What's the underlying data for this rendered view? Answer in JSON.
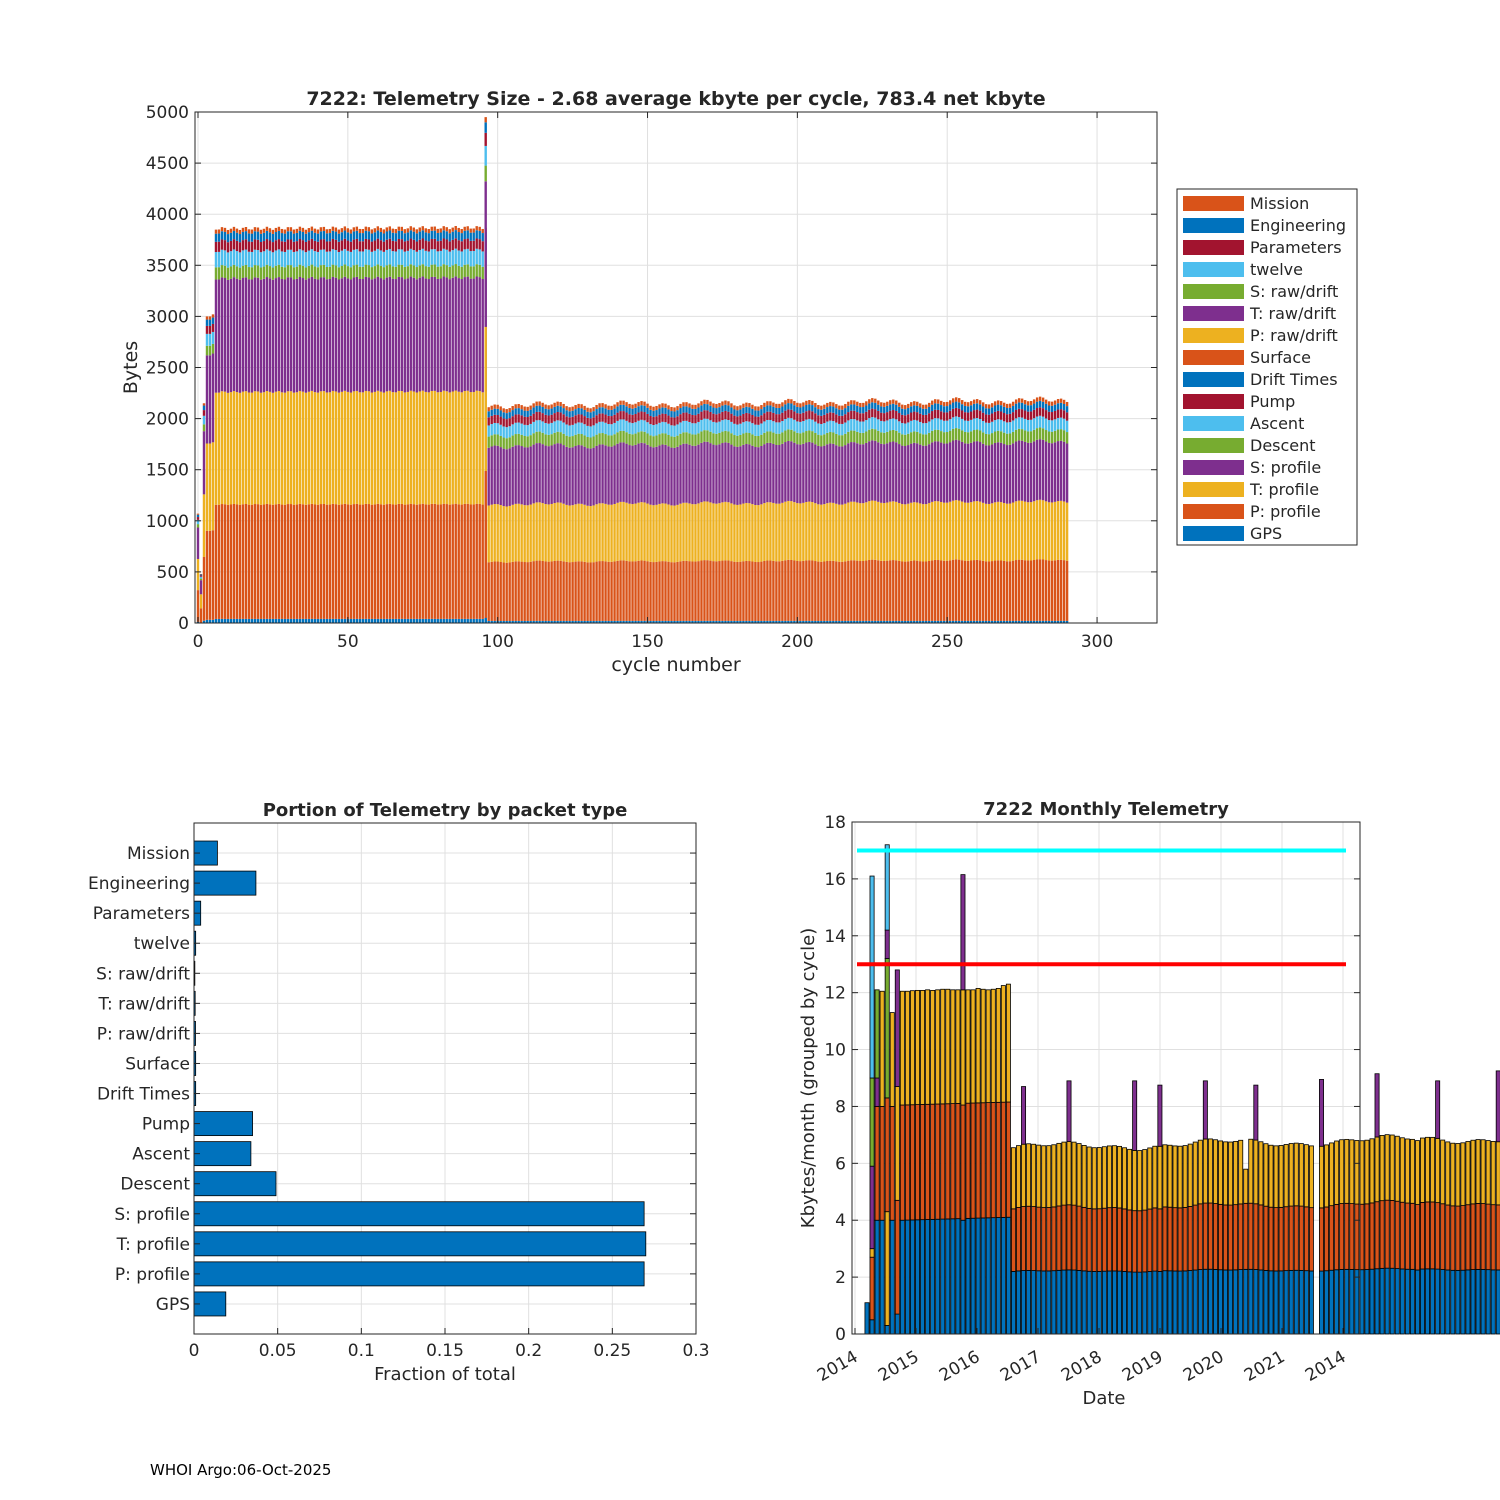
{
  "footer": "WHOI Argo:06-Oct-2025",
  "chart_data": [
    {
      "id": "telemetry-size",
      "type": "bar",
      "stacked": true,
      "title": "7222: Telemetry Size - 2.68 average kbyte per cycle,  783.4 net kbyte",
      "xlabel": "cycle number",
      "ylabel": "Bytes",
      "xlim": [
        -1,
        320
      ],
      "ylim": [
        0,
        5000
      ],
      "xticks": [
        0,
        50,
        100,
        150,
        200,
        250,
        300
      ],
      "yticks": [
        0,
        500,
        1000,
        1500,
        2000,
        2500,
        3000,
        3500,
        4000,
        4500,
        5000
      ],
      "grid": true,
      "legend_location": "outside-right",
      "legend": [
        {
          "name": "Mission",
          "color": "#D95319"
        },
        {
          "name": "Engineering",
          "color": "#0072BD"
        },
        {
          "name": "Parameters",
          "color": "#A2142F"
        },
        {
          "name": "twelve",
          "color": "#4DBEEE"
        },
        {
          "name": "S: raw/drift",
          "color": "#77AC30"
        },
        {
          "name": "T: raw/drift",
          "color": "#7E2F8E"
        },
        {
          "name": "P: raw/drift",
          "color": "#EDB120"
        },
        {
          "name": "Surface",
          "color": "#D95319"
        },
        {
          "name": "Drift Times",
          "color": "#0072BD"
        },
        {
          "name": "Pump",
          "color": "#A2142F"
        },
        {
          "name": "Ascent",
          "color": "#4DBEEE"
        },
        {
          "name": "Descent",
          "color": "#77AC30"
        },
        {
          "name": "S: profile",
          "color": "#7E2F8E"
        },
        {
          "name": "T: profile",
          "color": "#EDB120"
        },
        {
          "name": "P: profile",
          "color": "#D95319"
        },
        {
          "name": "GPS",
          "color": "#0072BD"
        }
      ],
      "stack_order_bottom_to_top": [
        "GPS",
        "P: profile",
        "T: profile",
        "S: profile",
        "Descent",
        "Ascent",
        "Pump",
        "Drift Times",
        "Surface",
        "P: raw/drift",
        "T: raw/drift",
        "S: raw/drift",
        "twelve",
        "Parameters",
        "Engineering",
        "Mission"
      ],
      "segments": [
        {
          "cycles": [
            6,
            96
          ],
          "values": {
            "GPS": 40,
            "P: profile": 1120,
            "T: profile": 1100,
            "S: profile": 1110,
            "Descent": 120,
            "Ascent": 150,
            "Pump": 100,
            "Engineering": 80,
            "Mission": 40
          },
          "total": 3860
        },
        {
          "cycles": [
            97,
            290
          ],
          "values": {
            "GPS": 20,
            "P: profile": 580,
            "T: profile": 560,
            "S: profile": 570,
            "Descent": 110,
            "Ascent": 110,
            "Pump": 80,
            "Engineering": 60,
            "Mission": 40
          },
          "total": 2130
        }
      ],
      "special_cycles": [
        {
          "cycle": 0,
          "total": 1070
        },
        {
          "cycle": 1,
          "total": 480
        },
        {
          "cycle": 2,
          "total": 2150
        },
        {
          "cycle": 3,
          "total": 3000
        },
        {
          "cycle": 4,
          "total": 3000
        },
        {
          "cycle": 5,
          "total": 3020
        },
        {
          "cycle": 96,
          "total": 4950
        }
      ]
    },
    {
      "id": "portion-by-packet",
      "type": "bar",
      "orientation": "horizontal",
      "title": "Portion of Telemetry by packet type",
      "xlabel": "Fraction of total",
      "ylabel": "",
      "xlim": [
        0,
        0.3
      ],
      "xticks": [
        0,
        0.05,
        0.1,
        0.15,
        0.2,
        0.25,
        0.3
      ],
      "xtick_labels": [
        "0",
        "0.05",
        "0.1",
        "0.15",
        "0.2",
        "0.25",
        "0.3"
      ],
      "grid": true,
      "bar_color": "#0072BD",
      "categories": [
        "Mission",
        "Engineering",
        "Parameters",
        "twelve",
        "S: raw/drift",
        "T: raw/drift",
        "P: raw/drift",
        "Surface",
        "Drift Times",
        "Pump",
        "Ascent",
        "Descent",
        "S: profile",
        "T: profile",
        "P: profile",
        "GPS"
      ],
      "values": [
        0.014,
        0.037,
        0.004,
        0.001,
        0.0005,
        0.0007,
        0.0009,
        0.001,
        0.001,
        0.035,
        0.034,
        0.049,
        0.269,
        0.27,
        0.269,
        0.019
      ]
    },
    {
      "id": "monthly-telemetry",
      "type": "bar",
      "stacked": true,
      "title": "7222 Monthly Telemetry",
      "xlabel": "Date",
      "ylabel": "Kbytes/month (grouped by cycle)",
      "ylim": [
        0,
        18
      ],
      "yticks": [
        0,
        2,
        4,
        6,
        8,
        10,
        12,
        14,
        16,
        18
      ],
      "xtick_labels": [
        "2014",
        "2015",
        "2016",
        "2017",
        "2018",
        "2019",
        "2020",
        "2021",
        "2014"
      ],
      "grid": true,
      "reference_lines": [
        {
          "y": 17,
          "color": "#00FFFF"
        },
        {
          "y": 13,
          "color": "#FF0000"
        }
      ],
      "layer_colors": [
        "#0072BD",
        "#D95319",
        "#EDB120",
        "#7E2F8E",
        "#77AC30",
        "#4DBEEE"
      ],
      "months": [
        {
          "i": 0,
          "layers": [
            1.1
          ]
        },
        {
          "i": 1,
          "layers": [
            0.5,
            2.2,
            0.3,
            2.9,
            3.1,
            7.0
          ],
          "outline": [
            0.5,
            2.7,
            3.0,
            5.9,
            9.0,
            16.1
          ]
        },
        {
          "i": 2,
          "layers": [
            4.0,
            4.0,
            4.0
          ]
        },
        {
          "i": 3,
          "layers": [
            4.0,
            4.0,
            4.0
          ]
        },
        {
          "i": 4,
          "layers": [
            0.3,
            4.0,
            4.0,
            4.0,
            1.0,
            3.8
          ]
        },
        {
          "i": 5,
          "layers": [
            4.0,
            4.0,
            3.3
          ]
        },
        {
          "i": 6,
          "layers": [
            0.7,
            4.0,
            4.0,
            4.1
          ]
        },
        {
          "i": 7,
          "layers": [
            4.0,
            4.0,
            4.0
          ]
        }
      ],
      "early_totals": [
        12.05,
        12.05,
        12.07,
        12.08,
        12.08,
        12.1,
        12.08,
        12.1,
        12.12,
        12.12,
        12.1,
        12.1,
        12.1,
        12.1,
        12.1,
        12.15,
        12.12,
        12.1,
        12.12,
        12.15,
        12.25,
        12.3
      ],
      "early_spike_month_index": 12,
      "early_spike_total": 16.15,
      "late_totals_base": 6.6,
      "late_spikes": [
        {
          "index": 2,
          "total": 8.7
        },
        {
          "index": 11,
          "total": 8.9
        },
        {
          "index": 24,
          "total": 8.9
        },
        {
          "index": 29,
          "total": 8.75
        },
        {
          "index": 38,
          "total": 8.9
        },
        {
          "index": 48,
          "total": 8.75
        },
        {
          "index": 61,
          "total": 8.95
        },
        {
          "index": 72,
          "total": 9.15
        },
        {
          "index": 84,
          "total": 8.9
        },
        {
          "index": 96,
          "total": 9.25
        }
      ]
    }
  ]
}
